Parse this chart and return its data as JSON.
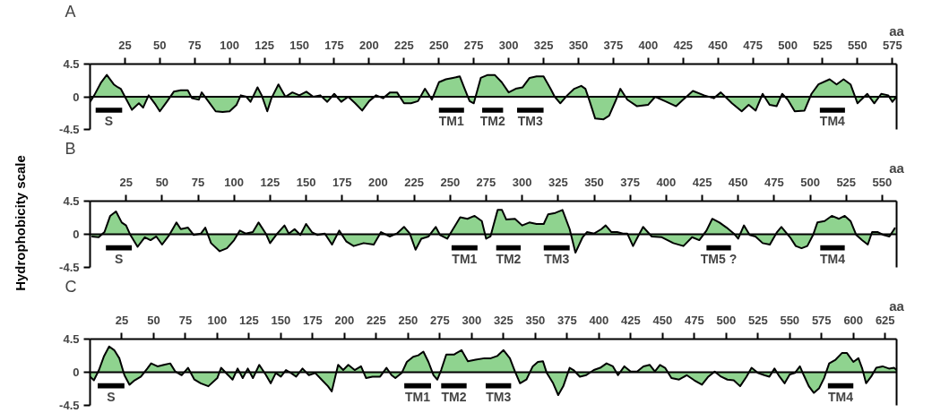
{
  "chart_data": [
    {
      "type": "area",
      "title": "A",
      "xlabel": "aa",
      "xlim": [
        0,
        578
      ],
      "xticks": [
        25,
        50,
        75,
        100,
        125,
        150,
        175,
        200,
        225,
        250,
        275,
        300,
        325,
        350,
        375,
        400,
        425,
        450,
        475,
        500,
        525,
        550,
        575
      ],
      "ylim": [
        -4.5,
        4.5
      ],
      "yticks": [
        4.5,
        0,
        -4.5
      ],
      "x": [
        0,
        3,
        8,
        12,
        17,
        20,
        22,
        25,
        30,
        35,
        38,
        42,
        47,
        50,
        55,
        60,
        65,
        70,
        73,
        78,
        80,
        85,
        90,
        95,
        100,
        105,
        108,
        112,
        115,
        120,
        123,
        127,
        130,
        135,
        140,
        145,
        150,
        155,
        160,
        165,
        170,
        175,
        180,
        185,
        190,
        195,
        200,
        205,
        210,
        215,
        220,
        225,
        230,
        235,
        240,
        245,
        250,
        255,
        260,
        265,
        268,
        272,
        275,
        280,
        285,
        290,
        295,
        300,
        305,
        310,
        315,
        320,
        325,
        330,
        333,
        337,
        342,
        347,
        352,
        355,
        358,
        362,
        368,
        372,
        377,
        380,
        385,
        392,
        400,
        405,
        412,
        420,
        425,
        432,
        440,
        447,
        452,
        460,
        467,
        472,
        477,
        482,
        487,
        492,
        496,
        500,
        505,
        512,
        517,
        522,
        530,
        535,
        540,
        545,
        550,
        557,
        562,
        567,
        572,
        575,
        578
      ],
      "series": [
        {
          "color": "#8fd38f",
          "values": [
            -0.7,
            0.2,
            2.0,
            3.0,
            1.7,
            1.3,
            1.1,
            0,
            -1.8,
            -0.9,
            -1.5,
            0.2,
            -1.1,
            -2.0,
            -0.7,
            0.7,
            0.9,
            0.9,
            -0.2,
            -0.4,
            0.6,
            -0.7,
            -2.0,
            -2.1,
            -2.0,
            -1.1,
            0.2,
            0,
            -0.7,
            1.3,
            0.2,
            -2.0,
            -0.2,
            1.7,
            0,
            0.6,
            0.2,
            0.7,
            0,
            0.2,
            -0.7,
            0.4,
            -0.7,
            0,
            -0.9,
            -1.9,
            -0.6,
            0.2,
            -0.2,
            0.6,
            0.6,
            -0.9,
            -0.9,
            -0.6,
            1.1,
            -0.4,
            2.0,
            2.4,
            2.6,
            2.8,
            1.3,
            -0.6,
            -0.9,
            2.6,
            3.0,
            3.0,
            2.0,
            0.6,
            1.1,
            1.3,
            2.6,
            2.8,
            2.8,
            1.1,
            0,
            -0.9,
            0.2,
            1.1,
            1.5,
            1.1,
            -0.6,
            -3.0,
            -3.1,
            -2.6,
            -0.4,
            1.1,
            -0.4,
            -1.3,
            -1.1,
            0,
            -0.6,
            -1.3,
            -0.4,
            0.8,
            0.2,
            -0.2,
            0.6,
            -0.9,
            -2.0,
            -1.1,
            -1.9,
            0.4,
            -1.1,
            -1.3,
            0.4,
            -0.4,
            -2.0,
            -1.9,
            0.4,
            1.7,
            2.4,
            1.7,
            2.4,
            1.7,
            -0.9,
            0.4,
            -0.9,
            0.4,
            0.2,
            -0.7,
            0
          ]
        }
      ],
      "ref_lines": [
        {
          "axis": "y",
          "value": 0
        }
      ],
      "bands": [
        {
          "axis": "x",
          "from": 4,
          "to": 23,
          "label": "S",
          "color": "#000000"
        },
        {
          "axis": "x",
          "from": 250,
          "to": 268,
          "label": "TM1",
          "color": "#000000"
        },
        {
          "axis": "x",
          "from": 281,
          "to": 296,
          "label": "TM2",
          "color": "#000000"
        },
        {
          "axis": "x",
          "from": 306,
          "to": 325,
          "label": "TM3",
          "color": "#000000"
        },
        {
          "axis": "x",
          "from": 523,
          "to": 541,
          "label": "TM4",
          "color": "#000000"
        }
      ]
    },
    {
      "type": "area",
      "title": "B",
      "xlabel": "aa",
      "ylabel": "Hydrophobicity scale",
      "xlim": [
        0,
        560
      ],
      "xticks": [
        25,
        50,
        75,
        100,
        125,
        150,
        175,
        200,
        225,
        250,
        275,
        300,
        325,
        350,
        375,
        400,
        425,
        450,
        475,
        500,
        525,
        550
      ],
      "ylim": [
        -4.5,
        4.5
      ],
      "yticks": [
        4.5,
        0,
        -4.5
      ],
      "x": [
        1,
        6,
        10,
        14,
        18,
        22,
        25,
        28,
        33,
        38,
        42,
        46,
        50,
        55,
        60,
        63,
        68,
        72,
        77,
        80,
        84,
        90,
        95,
        100,
        104,
        108,
        113,
        117,
        122,
        125,
        130,
        135,
        138,
        142,
        146,
        150,
        154,
        158,
        163,
        168,
        173,
        178,
        183,
        190,
        197,
        202,
        208,
        213,
        218,
        222,
        226,
        230,
        235,
        240,
        243,
        248,
        252,
        257,
        262,
        267,
        272,
        275,
        278,
        283,
        286,
        289,
        295,
        300,
        305,
        310,
        315,
        318,
        323,
        328,
        333,
        337,
        342,
        345,
        350,
        355,
        358,
        362,
        366,
        370,
        373,
        377,
        381,
        384,
        390,
        397,
        405,
        412,
        418,
        423,
        428,
        432,
        437,
        442,
        447,
        450,
        454,
        458,
        462,
        467,
        472,
        477,
        480,
        483,
        486,
        490,
        494,
        498,
        502,
        505,
        510,
        515,
        520,
        524,
        528,
        532,
        536,
        540,
        543,
        547,
        551,
        555,
        559
      ],
      "series": [
        {
          "color": "#8fd38f",
          "values": [
            -0.3,
            -0.4,
            0.3,
            2.5,
            3.1,
            1.6,
            1.2,
            -0.1,
            -1.7,
            -0.4,
            -0.8,
            -0.3,
            -1.4,
            -0.1,
            1.6,
            0.7,
            0.9,
            -0.1,
            0.1,
            0.9,
            -1.2,
            -2.3,
            -1.9,
            -0.8,
            0.5,
            0.1,
            0.3,
            1.6,
            0.1,
            -1.2,
            0.1,
            1.2,
            0.1,
            0.7,
            -0.1,
            1.4,
            0.3,
            -0.1,
            0.1,
            -1.4,
            0.5,
            -1.0,
            -1.6,
            -1.2,
            -1.4,
            0.3,
            -0.3,
            0.1,
            1.0,
            0.1,
            -2.1,
            -0.6,
            -0.3,
            1.0,
            -0.1,
            -0.6,
            0.7,
            2.3,
            2.1,
            2.5,
            1.8,
            -0.6,
            -0.3,
            3.3,
            3.3,
            2.0,
            2.1,
            1.2,
            1.6,
            1.4,
            1.4,
            2.7,
            2.9,
            3.3,
            0.7,
            -2.5,
            -0.4,
            0.3,
            0.1,
            0.7,
            1.2,
            0.3,
            0.3,
            0.1,
            0.1,
            -1.6,
            -0.1,
            1.0,
            -0.3,
            -0.4,
            -1.2,
            -1.6,
            -0.4,
            -0.8,
            0.5,
            2.1,
            1.6,
            0.9,
            0.1,
            -0.6,
            1.2,
            -0.1,
            -0.3,
            -1.2,
            -1.4,
            0.3,
            1.0,
            0.3,
            -0.4,
            -1.6,
            -1.9,
            -1.6,
            -0.1,
            1.6,
            1.8,
            2.5,
            2.1,
            2.5,
            1.8,
            -0.1,
            -0.8,
            -1.4,
            0.3,
            0.3,
            -0.1,
            -0.3,
            0.9
          ]
        }
      ],
      "ref_lines": [
        {
          "axis": "y",
          "value": 0
        }
      ],
      "bands": [
        {
          "axis": "x",
          "from": 11,
          "to": 29,
          "label": "S",
          "color": "#000000"
        },
        {
          "axis": "x",
          "from": 251,
          "to": 269,
          "label": "TM1",
          "color": "#000000"
        },
        {
          "axis": "x",
          "from": 282,
          "to": 299,
          "label": "TM2",
          "color": "#000000"
        },
        {
          "axis": "x",
          "from": 315,
          "to": 333,
          "label": "TM3",
          "color": "#000000"
        },
        {
          "axis": "x",
          "from": 428,
          "to": 445,
          "label": "TM5 ?",
          "color": "#000000"
        },
        {
          "axis": "x",
          "from": 507,
          "to": 524,
          "label": "TM4",
          "color": "#000000"
        }
      ]
    },
    {
      "type": "area",
      "title": "C",
      "xlabel": "aa",
      "xlim": [
        0,
        634
      ],
      "xticks": [
        25,
        50,
        75,
        100,
        125,
        150,
        175,
        200,
        225,
        250,
        275,
        300,
        325,
        350,
        375,
        400,
        425,
        450,
        475,
        500,
        525,
        550,
        575,
        600,
        625
      ],
      "ylim": [
        -4.5,
        4.5
      ],
      "yticks": [
        4.5,
        0,
        -4.5
      ],
      "x": [
        0,
        3,
        7,
        11,
        15,
        19,
        23,
        27,
        31,
        35,
        40,
        45,
        48,
        53,
        58,
        63,
        67,
        72,
        77,
        82,
        87,
        93,
        100,
        103,
        108,
        112,
        116,
        120,
        124,
        128,
        133,
        138,
        142,
        146,
        150,
        154,
        158,
        162,
        167,
        172,
        177,
        182,
        187,
        190,
        195,
        199,
        203,
        208,
        213,
        217,
        222,
        228,
        233,
        237,
        240,
        245,
        249,
        254,
        258,
        262,
        266,
        270,
        273,
        276,
        280,
        286,
        292,
        297,
        303,
        310,
        315,
        320,
        325,
        330,
        334,
        338,
        343,
        348,
        352,
        356,
        359,
        364,
        368,
        372,
        377,
        380,
        385,
        390,
        396,
        401,
        406,
        411,
        415,
        420,
        425,
        430,
        435,
        440,
        444,
        448,
        452,
        457,
        463,
        469,
        475,
        481,
        486,
        491,
        496,
        501,
        506,
        511,
        516,
        520,
        525,
        530,
        534,
        538,
        542,
        546,
        550,
        554,
        558,
        561,
        565,
        569,
        573,
        577,
        581,
        586,
        591,
        595,
        600,
        604,
        607,
        610,
        614,
        618,
        623,
        628,
        632,
        634
      ],
      "series": [
        {
          "color": "#8fd38f",
          "values": [
            -0.6,
            -1.1,
            0.3,
            2.2,
            3.5,
            3.0,
            1.9,
            -0.4,
            -1.7,
            -1.1,
            -0.6,
            0.5,
            1.2,
            0.8,
            1.0,
            1.2,
            0.1,
            -0.4,
            0.6,
            -1.0,
            -1.5,
            -1.9,
            -0.8,
            0.6,
            -0.3,
            -1.0,
            0.5,
            -0.8,
            0.5,
            -0.8,
            1.0,
            -0.3,
            -1.5,
            -0.1,
            -0.6,
            0.3,
            -0.1,
            -0.6,
            0.5,
            -0.4,
            -0.1,
            -1.0,
            -1.9,
            -2.6,
            1.0,
            0.3,
            1.0,
            0.3,
            0.8,
            -0.8,
            -0.6,
            -0.6,
            0.6,
            -0.4,
            -0.8,
            -0.1,
            1.4,
            2.1,
            2.3,
            2.8,
            1.4,
            -0.4,
            -1.0,
            0.3,
            2.4,
            2.4,
            3.0,
            1.5,
            1.7,
            1.9,
            1.9,
            2.2,
            3.0,
            1.9,
            0.1,
            -1.5,
            -1.0,
            0.8,
            1.4,
            1.5,
            -0.1,
            -1.5,
            -3.1,
            -1.9,
            0.6,
            0.3,
            -0.6,
            -0.4,
            0.3,
            0.6,
            1.2,
            0.8,
            -0.4,
            0.8,
            0.1,
            0.1,
            0.8,
            1.0,
            0.1,
            1.0,
            0.6,
            -0.8,
            -1.0,
            -0.4,
            -1.1,
            -1.7,
            -0.6,
            0.1,
            -0.6,
            -1.0,
            -1.1,
            -1.9,
            -0.6,
            0.6,
            -0.1,
            -0.4,
            -0.6,
            0.5,
            -0.6,
            -1.5,
            -0.3,
            -0.1,
            0.8,
            -0.4,
            -1.9,
            -2.8,
            -2.2,
            -0.8,
            1.2,
            1.7,
            2.6,
            2.6,
            1.4,
            1.9,
            0.5,
            -1.5,
            -0.6,
            0.6,
            0.8,
            0.5,
            0.6,
            0.3
          ]
        }
      ],
      "ref_lines": [
        {
          "axis": "y",
          "value": 0
        }
      ],
      "bands": [
        {
          "axis": "x",
          "from": 6,
          "to": 27,
          "label": "S",
          "color": "#000000"
        },
        {
          "axis": "x",
          "from": 247,
          "to": 268,
          "label": "TM1",
          "color": "#000000"
        },
        {
          "axis": "x",
          "from": 276,
          "to": 296,
          "label": "TM2",
          "color": "#000000"
        },
        {
          "axis": "x",
          "from": 311,
          "to": 331,
          "label": "TM3",
          "color": "#000000"
        },
        {
          "axis": "x",
          "from": 580,
          "to": 600,
          "label": "TM4",
          "color": "#000000"
        }
      ]
    }
  ]
}
